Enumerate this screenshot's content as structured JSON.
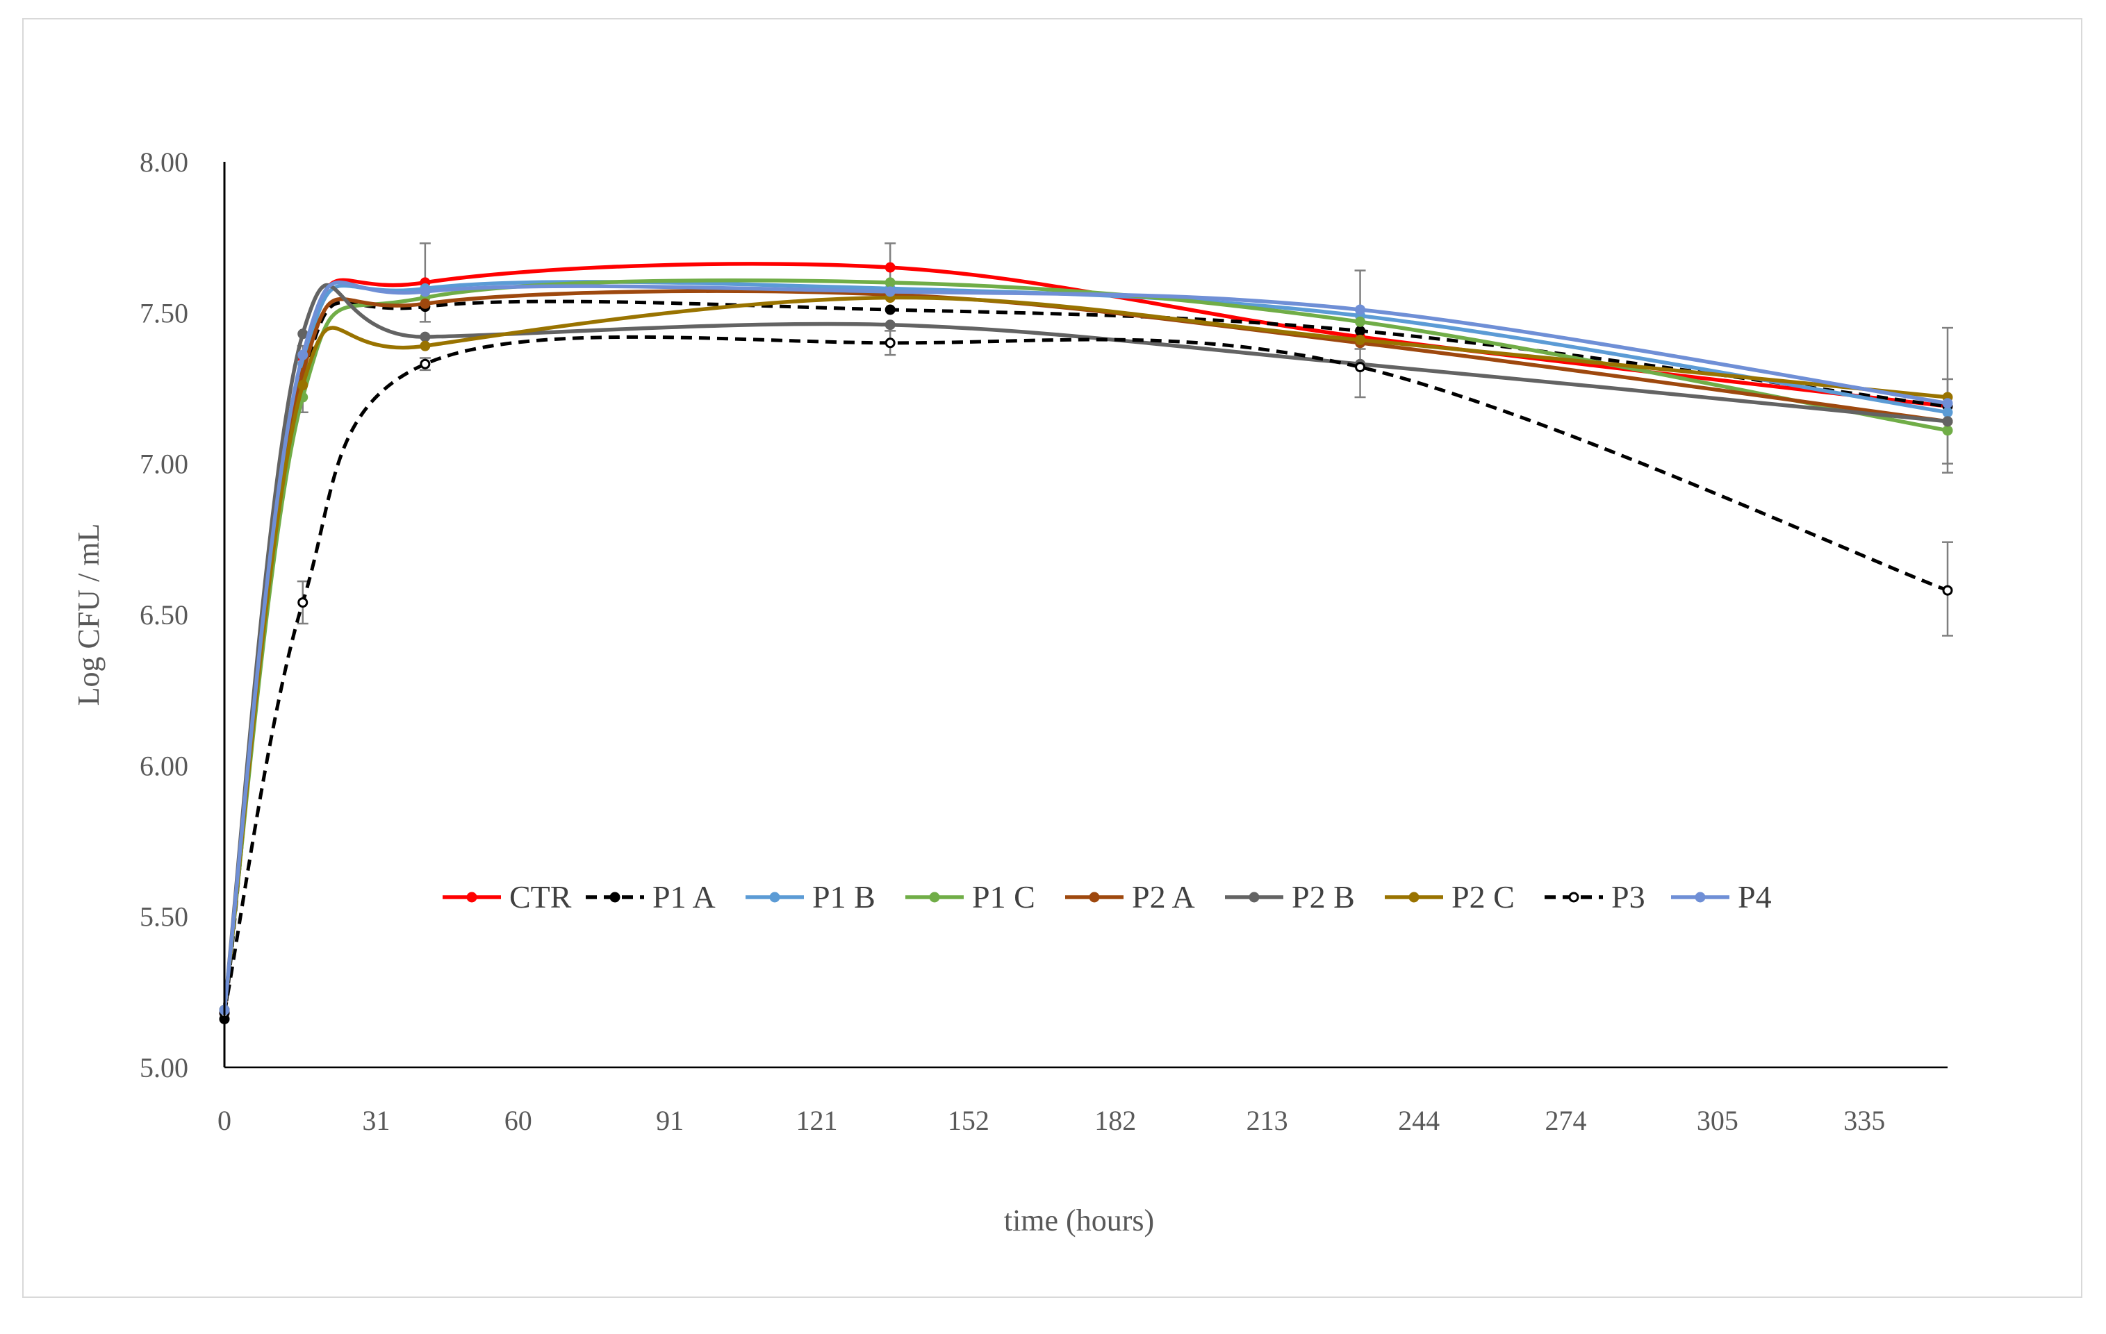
{
  "chart_data": {
    "type": "line",
    "title": "",
    "xlabel": "time (hours)",
    "ylabel": "Log CFU / mL",
    "ylim": [
      5.0,
      8.0
    ],
    "yticks": [
      "5.00",
      "5.50",
      "6.00",
      "6.50",
      "7.00",
      "7.50",
      "8.00"
    ],
    "ytick_values": [
      5.0,
      5.5,
      6.0,
      6.5,
      7.0,
      7.5,
      8.0
    ],
    "xlim": [
      0,
      352
    ],
    "xticks": [
      "0",
      "31",
      "60",
      "91",
      "121",
      "152",
      "182",
      "213",
      "244",
      "274",
      "305",
      "335"
    ],
    "xtick_values": [
      0,
      31,
      60,
      91,
      121,
      152,
      182,
      213,
      244,
      274,
      305,
      335
    ],
    "grid": false,
    "legend_position": "center-inside",
    "x": [
      0,
      16,
      41,
      136,
      232,
      352
    ],
    "series": [
      {
        "name": "CTR",
        "color": "#ff0000",
        "dash": "solid",
        "marker": "filled",
        "values": [
          5.18,
          7.35,
          7.6,
          7.65,
          7.42,
          7.19
        ]
      },
      {
        "name": "P1 A",
        "color": "#000000",
        "dash": "dashed",
        "marker": "filled",
        "values": [
          5.16,
          7.28,
          7.52,
          7.51,
          7.44,
          7.19
        ]
      },
      {
        "name": "P1 B",
        "color": "#5b9bd5",
        "dash": "solid",
        "marker": "filled",
        "values": [
          5.19,
          7.33,
          7.58,
          7.58,
          7.49,
          7.17
        ]
      },
      {
        "name": "P1 C",
        "color": "#70ad47",
        "dash": "solid",
        "marker": "filled",
        "values": [
          5.19,
          7.22,
          7.55,
          7.6,
          7.47,
          7.11
        ]
      },
      {
        "name": "P2 A",
        "color": "#9e480e",
        "dash": "solid",
        "marker": "filled",
        "values": [
          5.19,
          7.3,
          7.53,
          7.56,
          7.4,
          7.14
        ]
      },
      {
        "name": "P2 B",
        "color": "#636363",
        "dash": "solid",
        "marker": "filled",
        "values": [
          5.19,
          7.43,
          7.42,
          7.46,
          7.33,
          7.14
        ]
      },
      {
        "name": "P2 C",
        "color": "#997300",
        "dash": "solid",
        "marker": "filled",
        "values": [
          5.19,
          7.26,
          7.39,
          7.55,
          7.41,
          7.22
        ]
      },
      {
        "name": "P3",
        "color": "#000000",
        "dash": "dashed",
        "marker": "open",
        "values": [
          5.18,
          6.54,
          7.33,
          7.4,
          7.32,
          6.58
        ]
      },
      {
        "name": "P4",
        "color": "#6f8fd6",
        "dash": "solid",
        "marker": "filled",
        "values": [
          5.19,
          7.36,
          7.57,
          7.57,
          7.51,
          7.2
        ]
      }
    ],
    "error_bars": [
      {
        "series": "P1 A",
        "x": 16,
        "low": 7.17,
        "high": 7.39
      },
      {
        "series": "P3",
        "x": 16,
        "low": 6.47,
        "high": 6.61
      },
      {
        "series": "CTR",
        "x": 41,
        "low": 7.47,
        "high": 7.73
      },
      {
        "series": "P3",
        "x": 41,
        "low": 7.31,
        "high": 7.35
      },
      {
        "series": "CTR",
        "x": 136,
        "low": 7.57,
        "high": 7.73
      },
      {
        "series": "P3",
        "x": 136,
        "low": 7.36,
        "high": 7.44
      },
      {
        "series": "P4",
        "x": 232,
        "low": 7.38,
        "high": 7.64
      },
      {
        "series": "P2 B",
        "x": 232,
        "low": 7.22,
        "high": 7.44
      },
      {
        "series": "P2 C",
        "x": 352,
        "low": 7.0,
        "high": 7.45
      },
      {
        "series": "P1 C",
        "x": 352,
        "low": 6.97,
        "high": 7.28
      },
      {
        "series": "P3",
        "x": 352,
        "low": 6.43,
        "high": 6.74
      }
    ]
  }
}
